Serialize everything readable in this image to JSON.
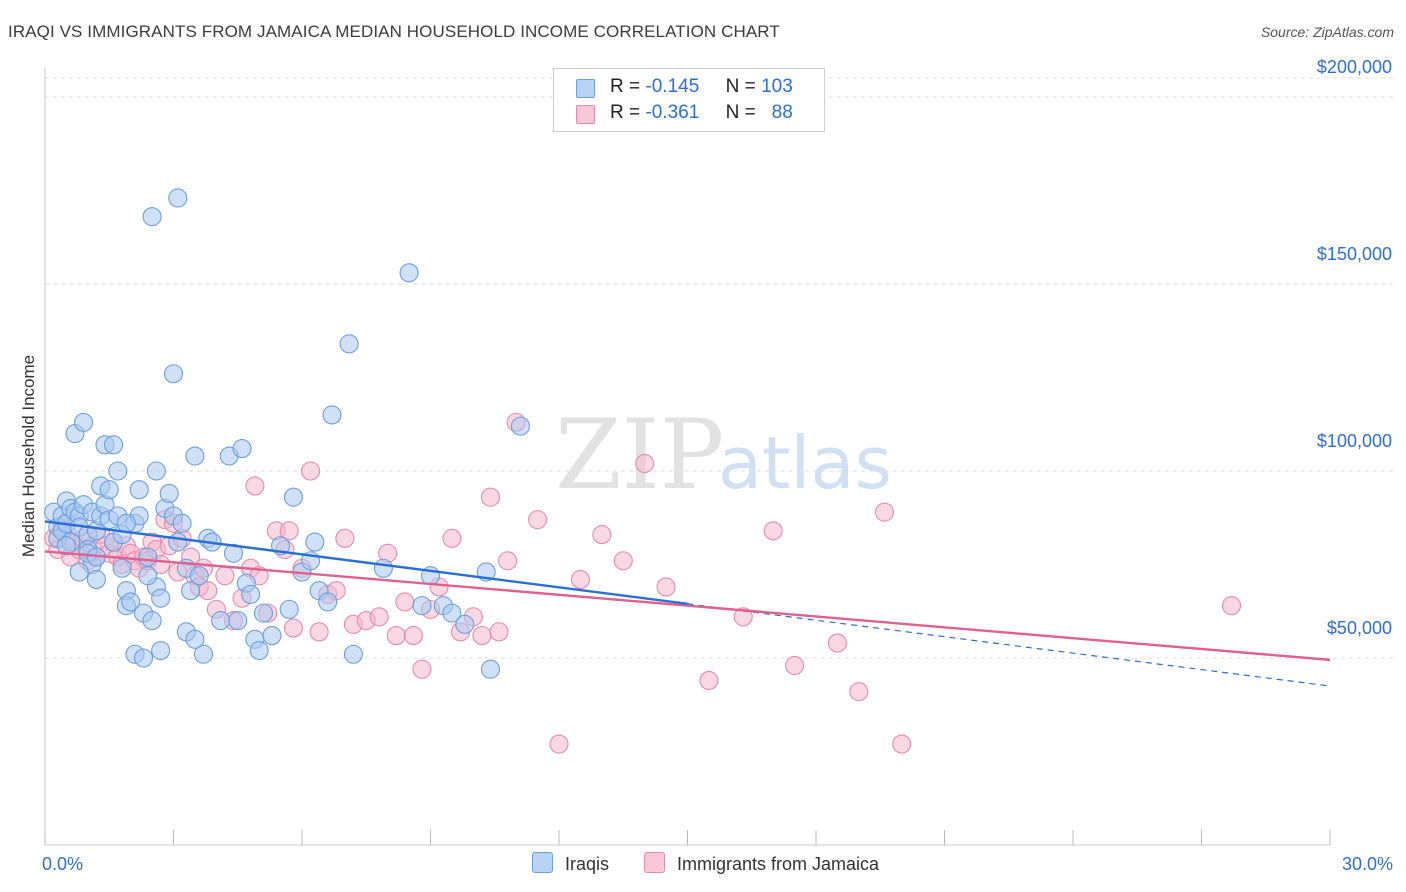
{
  "title": "IRAQI VS IMMIGRANTS FROM JAMAICA MEDIAN HOUSEHOLD INCOME CORRELATION CHART",
  "source": "Source: ZipAtlas.com",
  "legend": {
    "rows": [
      {
        "r_label": "R =",
        "r_value": "-0.145",
        "n_label": "N =",
        "n_value": "103"
      },
      {
        "r_label": "R =",
        "r_value": "-0.361",
        "n_label": "N =",
        "n_value": "88"
      }
    ]
  },
  "watermark": {
    "zip": "ZIP",
    "atlas": "atlas"
  },
  "colors": {
    "blue_fill": "#a9c9f0",
    "blue_stroke": "#6a9fe0",
    "blue_line": "#2a6fd3",
    "pink_fill": "#f6b8cc",
    "pink_stroke": "#e88aab",
    "pink_line": "#e0608e",
    "axis_text": "#2e6fd4",
    "grid": "#dddddd"
  },
  "chart_data": {
    "type": "scatter",
    "title": "IRAQI VS IMMIGRANTS FROM JAMAICA MEDIAN HOUSEHOLD INCOME CORRELATION CHART",
    "xlabel": "",
    "ylabel": "Median Household Income",
    "xlim": [
      0,
      30
    ],
    "ylim": [
      0,
      200000
    ],
    "x_tick_labels": [
      "0.0%",
      "30.0%"
    ],
    "y_ticks": [
      50000,
      100000,
      150000,
      200000
    ],
    "y_tick_labels": [
      "$50,000",
      "$100,000",
      "$150,000",
      "$200,000"
    ],
    "grid": true,
    "legend_position": "top-center",
    "series": [
      {
        "name": "Iraqis",
        "r": -0.145,
        "n": 103,
        "trend": {
          "x0": 0,
          "y0": 86500,
          "x1": 15,
          "y1": 64500,
          "dash_x1": 30,
          "dash_y1": 42500
        },
        "points": [
          [
            0.2,
            89000
          ],
          [
            0.3,
            85000
          ],
          [
            0.3,
            82000
          ],
          [
            0.4,
            88000
          ],
          [
            0.4,
            84000
          ],
          [
            0.5,
            92000
          ],
          [
            0.5,
            86000
          ],
          [
            0.6,
            90000
          ],
          [
            0.6,
            81000
          ],
          [
            0.7,
            110000
          ],
          [
            0.7,
            89000
          ],
          [
            0.8,
            88000
          ],
          [
            0.8,
            85000
          ],
          [
            0.9,
            113000
          ],
          [
            0.9,
            91000
          ],
          [
            1.0,
            83000
          ],
          [
            1.0,
            79000
          ],
          [
            1.1,
            75000
          ],
          [
            1.1,
            89000
          ],
          [
            1.2,
            84000
          ],
          [
            1.2,
            71000
          ],
          [
            1.3,
            96000
          ],
          [
            1.3,
            88000
          ],
          [
            1.4,
            107000
          ],
          [
            1.4,
            91000
          ],
          [
            1.5,
            95000
          ],
          [
            1.5,
            87000
          ],
          [
            1.6,
            81000
          ],
          [
            1.6,
            107000
          ],
          [
            1.7,
            100000
          ],
          [
            1.7,
            88000
          ],
          [
            1.8,
            83000
          ],
          [
            1.8,
            74000
          ],
          [
            1.9,
            68000
          ],
          [
            1.9,
            64000
          ],
          [
            2.0,
            65000
          ],
          [
            2.1,
            86000
          ],
          [
            2.1,
            51000
          ],
          [
            2.2,
            88000
          ],
          [
            2.2,
            95000
          ],
          [
            2.3,
            62000
          ],
          [
            2.3,
            50000
          ],
          [
            2.4,
            77000
          ],
          [
            2.5,
            168000
          ],
          [
            2.5,
            60000
          ],
          [
            2.6,
            69000
          ],
          [
            2.6,
            100000
          ],
          [
            2.7,
            52000
          ],
          [
            2.8,
            90000
          ],
          [
            2.9,
            94000
          ],
          [
            3.0,
            88000
          ],
          [
            3.0,
            126000
          ],
          [
            3.1,
            173000
          ],
          [
            3.1,
            81000
          ],
          [
            3.2,
            86000
          ],
          [
            3.3,
            74000
          ],
          [
            3.3,
            57000
          ],
          [
            3.4,
            68000
          ],
          [
            3.5,
            104000
          ],
          [
            3.6,
            72000
          ],
          [
            3.7,
            51000
          ],
          [
            3.8,
            82000
          ],
          [
            3.9,
            81000
          ],
          [
            4.1,
            60000
          ],
          [
            4.3,
            104000
          ],
          [
            4.4,
            78000
          ],
          [
            4.5,
            60000
          ],
          [
            4.6,
            106000
          ],
          [
            4.7,
            70000
          ],
          [
            4.8,
            67000
          ],
          [
            4.9,
            55000
          ],
          [
            5.0,
            52000
          ],
          [
            5.1,
            62000
          ],
          [
            5.3,
            56000
          ],
          [
            5.5,
            80000
          ],
          [
            5.7,
            63000
          ],
          [
            5.8,
            93000
          ],
          [
            6.0,
            73000
          ],
          [
            6.2,
            76000
          ],
          [
            6.3,
            81000
          ],
          [
            6.4,
            68000
          ],
          [
            6.6,
            65000
          ],
          [
            6.7,
            115000
          ],
          [
            7.1,
            134000
          ],
          [
            7.2,
            51000
          ],
          [
            7.9,
            74000
          ],
          [
            8.5,
            153000
          ],
          [
            8.8,
            64000
          ],
          [
            9.0,
            72000
          ],
          [
            9.3,
            64000
          ],
          [
            9.5,
            62000
          ],
          [
            9.8,
            59000
          ],
          [
            10.3,
            73000
          ],
          [
            10.4,
            47000
          ],
          [
            11.1,
            112000
          ],
          [
            1.0,
            78000
          ],
          [
            1.9,
            86000
          ],
          [
            2.4,
            72000
          ],
          [
            0.5,
            80000
          ],
          [
            1.2,
            77000
          ],
          [
            2.7,
            66000
          ],
          [
            3.5,
            55000
          ],
          [
            0.8,
            73000
          ]
        ]
      },
      {
        "name": "Immigrants from Jamaica",
        "r": -0.361,
        "n": 88,
        "trend": {
          "x0": 0,
          "y0": 78500,
          "x1": 30,
          "y1": 49500
        },
        "points": [
          [
            0.2,
            82000
          ],
          [
            0.3,
            79000
          ],
          [
            0.4,
            85000
          ],
          [
            0.5,
            84000
          ],
          [
            0.6,
            77000
          ],
          [
            0.7,
            81000
          ],
          [
            0.8,
            79000
          ],
          [
            0.9,
            82000
          ],
          [
            1.0,
            76000
          ],
          [
            1.1,
            80000
          ],
          [
            1.2,
            77000
          ],
          [
            1.3,
            83000
          ],
          [
            1.4,
            80000
          ],
          [
            1.5,
            78000
          ],
          [
            1.6,
            81000
          ],
          [
            1.7,
            77000
          ],
          [
            1.8,
            75000
          ],
          [
            1.9,
            80000
          ],
          [
            2.0,
            78000
          ],
          [
            2.1,
            76000
          ],
          [
            2.2,
            74000
          ],
          [
            2.3,
            77000
          ],
          [
            2.4,
            76000
          ],
          [
            2.5,
            81000
          ],
          [
            2.6,
            79000
          ],
          [
            2.7,
            75000
          ],
          [
            2.8,
            87000
          ],
          [
            2.9,
            80000
          ],
          [
            3.0,
            86000
          ],
          [
            3.2,
            82000
          ],
          [
            3.4,
            77000
          ],
          [
            3.5,
            72000
          ],
          [
            3.6,
            69000
          ],
          [
            3.7,
            74000
          ],
          [
            3.8,
            68000
          ],
          [
            4.0,
            63000
          ],
          [
            4.2,
            72000
          ],
          [
            4.4,
            60000
          ],
          [
            4.6,
            66000
          ],
          [
            4.8,
            74000
          ],
          [
            5.0,
            72000
          ],
          [
            5.2,
            62000
          ],
          [
            5.4,
            84000
          ],
          [
            5.6,
            79000
          ],
          [
            5.8,
            58000
          ],
          [
            6.0,
            74000
          ],
          [
            6.2,
            100000
          ],
          [
            6.4,
            57000
          ],
          [
            6.6,
            67000
          ],
          [
            6.8,
            68000
          ],
          [
            7.0,
            82000
          ],
          [
            7.2,
            59000
          ],
          [
            7.5,
            60000
          ],
          [
            7.8,
            61000
          ],
          [
            8.0,
            78000
          ],
          [
            8.2,
            56000
          ],
          [
            8.4,
            65000
          ],
          [
            8.6,
            56000
          ],
          [
            8.8,
            47000
          ],
          [
            9.0,
            63000
          ],
          [
            9.2,
            69000
          ],
          [
            9.5,
            82000
          ],
          [
            9.7,
            57000
          ],
          [
            10.0,
            61000
          ],
          [
            10.2,
            56000
          ],
          [
            10.4,
            93000
          ],
          [
            10.6,
            57000
          ],
          [
            10.8,
            76000
          ],
          [
            11.0,
            113000
          ],
          [
            11.5,
            87000
          ],
          [
            12.0,
            27000
          ],
          [
            12.5,
            71000
          ],
          [
            13.0,
            83000
          ],
          [
            13.5,
            76000
          ],
          [
            14.0,
            102000
          ],
          [
            14.5,
            69000
          ],
          [
            15.5,
            44000
          ],
          [
            16.3,
            61000
          ],
          [
            17.0,
            84000
          ],
          [
            17.5,
            48000
          ],
          [
            18.5,
            54000
          ],
          [
            19.0,
            41000
          ],
          [
            19.6,
            89000
          ],
          [
            20.0,
            27000
          ],
          [
            27.7,
            64000
          ],
          [
            4.9,
            96000
          ],
          [
            5.7,
            84000
          ],
          [
            3.1,
            73000
          ]
        ]
      }
    ]
  }
}
